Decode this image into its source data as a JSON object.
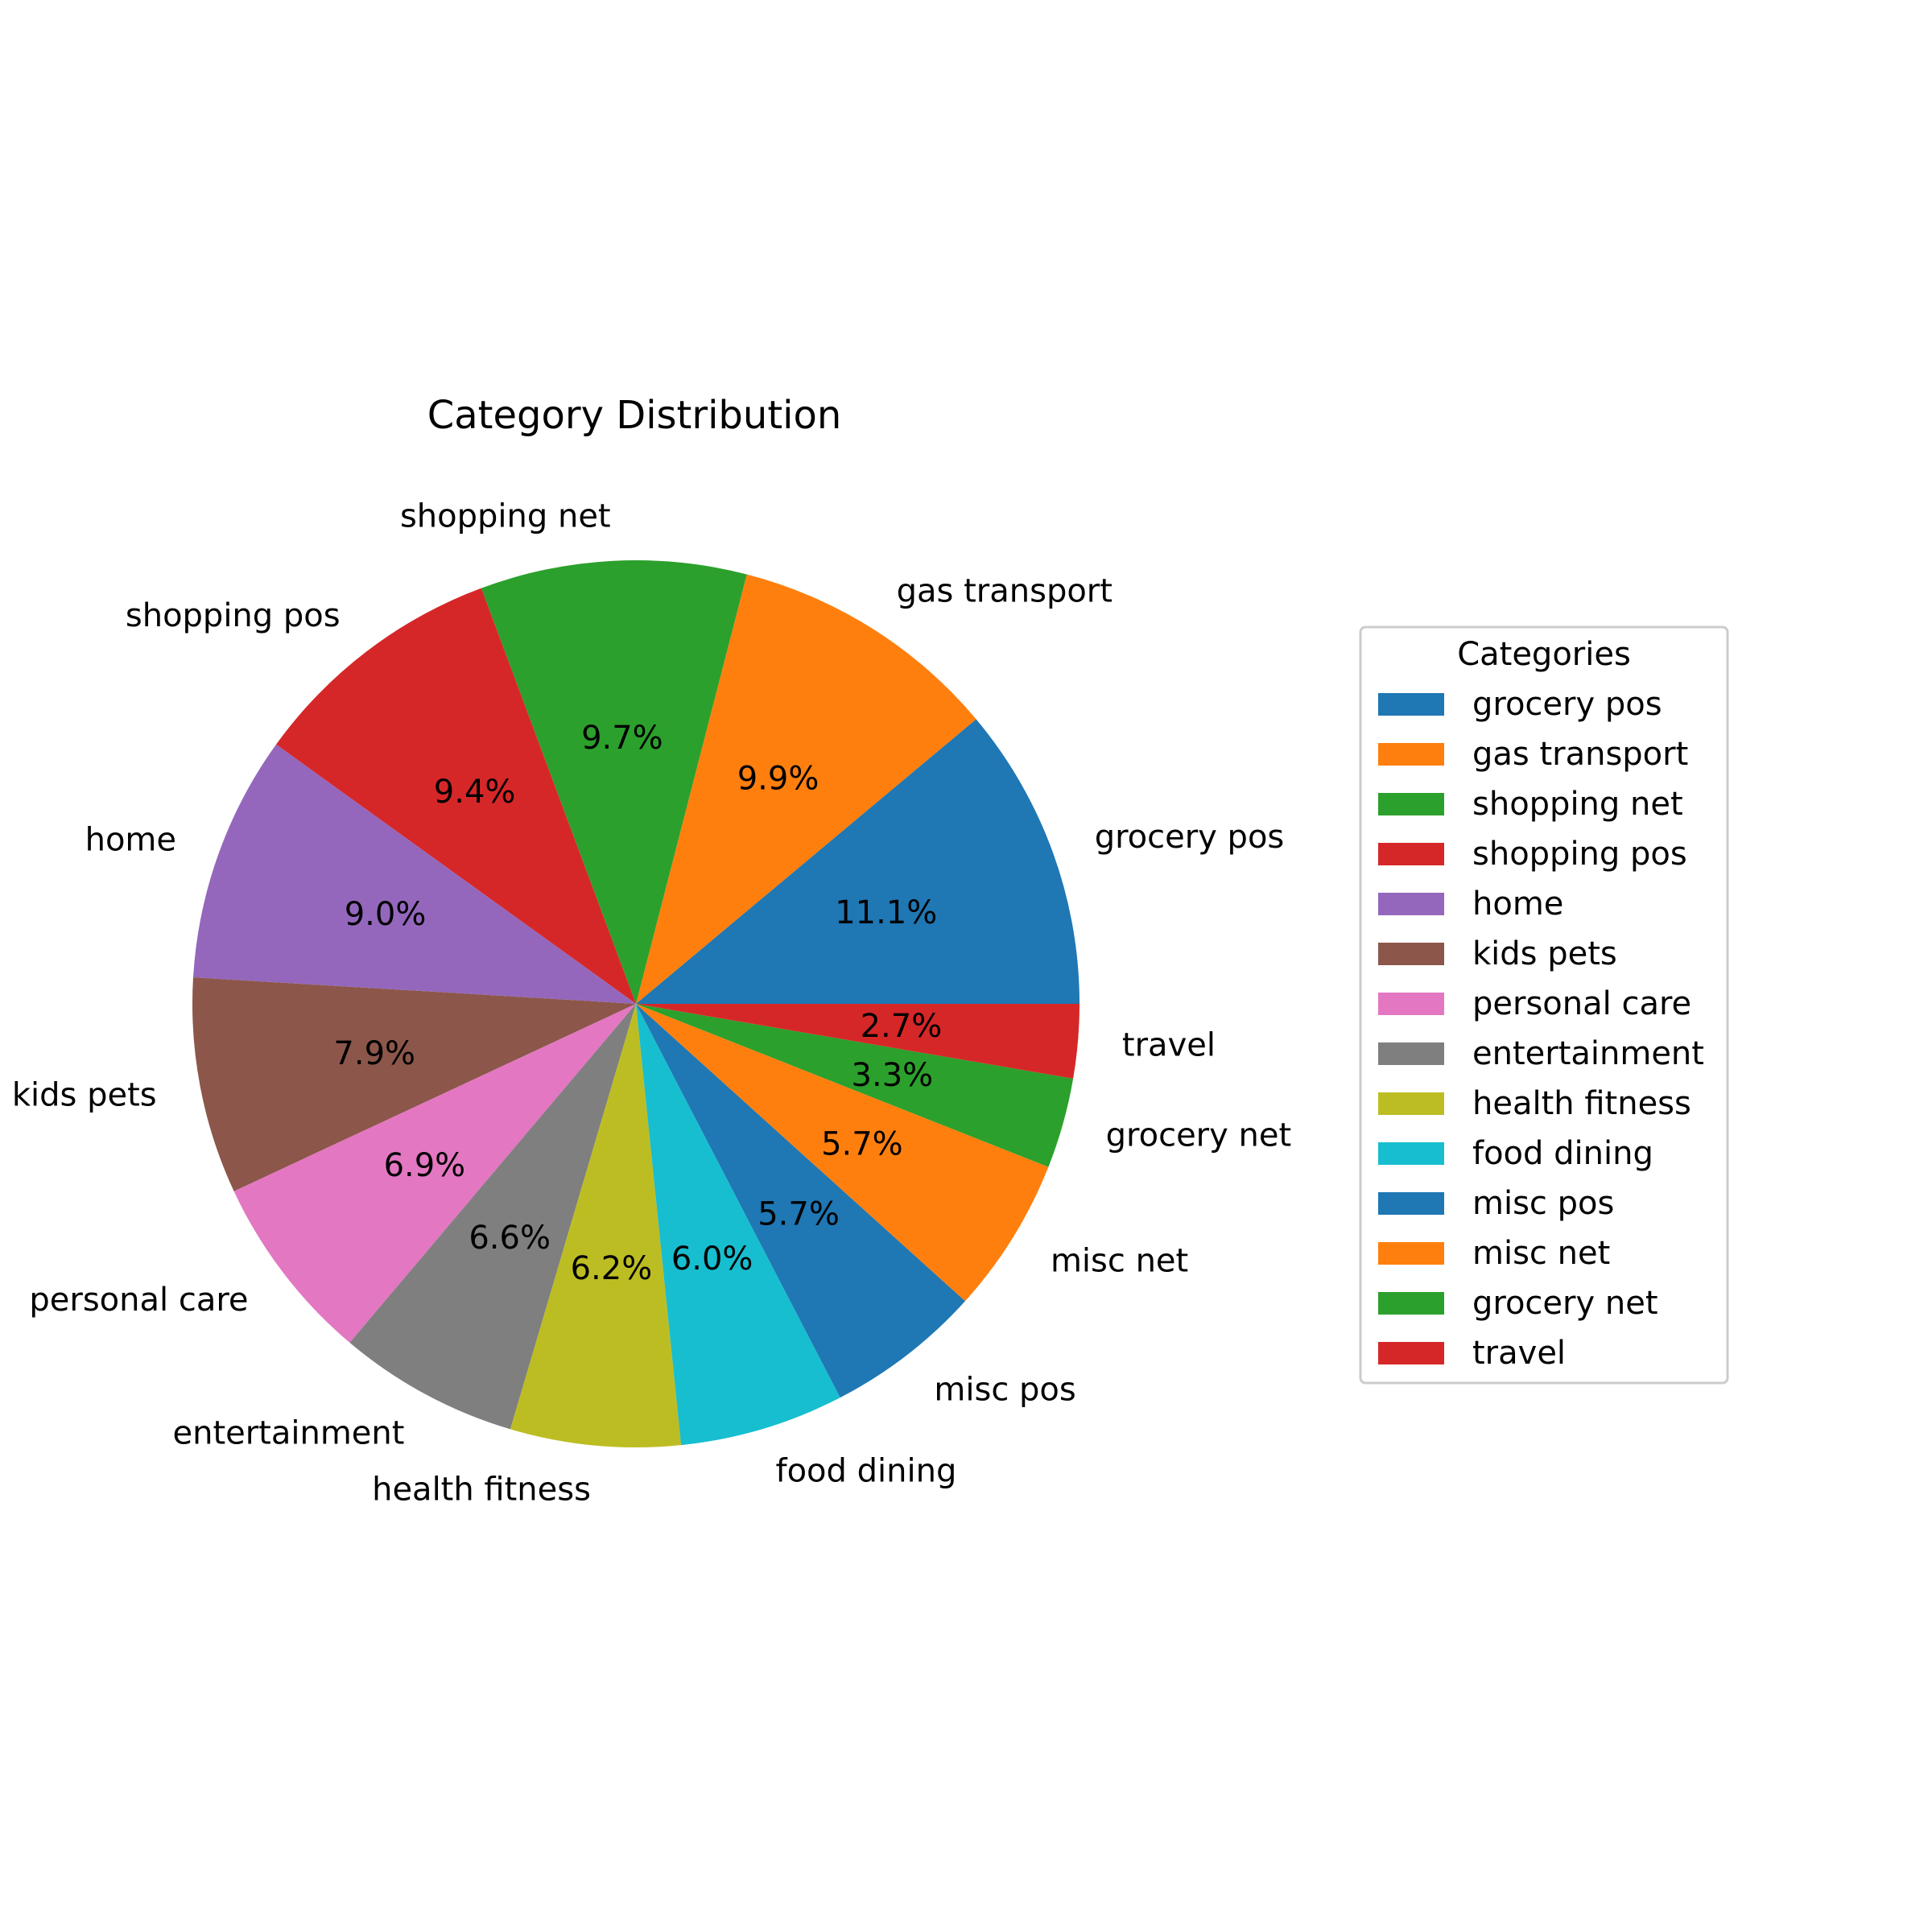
{
  "chart_data": {
    "type": "pie",
    "title": "Category Distribution",
    "start_angle_deg": 0,
    "direction": "counterclockwise",
    "legend_title": "Categories",
    "legend_position": "right",
    "slices": [
      {
        "label": "grocery pos",
        "value": 11.1,
        "pct_label": "11.1%",
        "color": "#1f77b4"
      },
      {
        "label": "gas transport",
        "value": 9.9,
        "pct_label": "9.9%",
        "color": "#ff7f0e"
      },
      {
        "label": "shopping net",
        "value": 9.7,
        "pct_label": "9.7%",
        "color": "#2ca02c"
      },
      {
        "label": "shopping pos",
        "value": 9.4,
        "pct_label": "9.4%",
        "color": "#d62728"
      },
      {
        "label": "home",
        "value": 9.0,
        "pct_label": "9.0%",
        "color": "#9467bd"
      },
      {
        "label": "kids pets",
        "value": 7.9,
        "pct_label": "7.9%",
        "color": "#8c564b"
      },
      {
        "label": "personal care",
        "value": 6.9,
        "pct_label": "6.9%",
        "color": "#e377c2"
      },
      {
        "label": "entertainment",
        "value": 6.6,
        "pct_label": "6.6%",
        "color": "#7f7f7f"
      },
      {
        "label": "health fitness",
        "value": 6.2,
        "pct_label": "6.2%",
        "color": "#bcbd22"
      },
      {
        "label": "food dining",
        "value": 6.0,
        "pct_label": "6.0%",
        "color": "#17becf"
      },
      {
        "label": "misc pos",
        "value": 5.7,
        "pct_label": "5.7%",
        "color": "#1f77b4"
      },
      {
        "label": "misc net",
        "value": 5.7,
        "pct_label": "5.7%",
        "color": "#ff7f0e"
      },
      {
        "label": "grocery net",
        "value": 3.3,
        "pct_label": "3.3%",
        "color": "#2ca02c"
      },
      {
        "label": "travel",
        "value": 2.7,
        "pct_label": "2.7%",
        "color": "#d62728"
      }
    ]
  }
}
